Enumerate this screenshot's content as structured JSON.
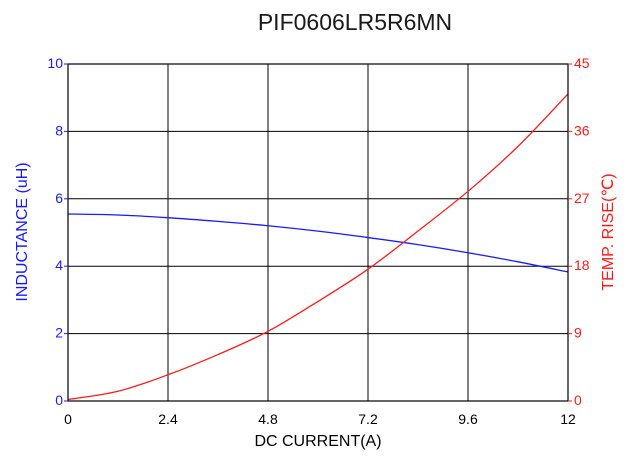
{
  "chart_data": {
    "type": "line",
    "title": "PIF0606LR5R6MN",
    "xlabel": "DC CURRENT(A)",
    "ylabel_left": "INDUCTANCE (uH)",
    "ylabel_right": "TEMP. RISE(℃)",
    "xlim": [
      0,
      12
    ],
    "ylim_left": [
      0,
      10
    ],
    "ylim_right": [
      0,
      45
    ],
    "x_ticks": [
      "0",
      "2.4",
      "4.8",
      "7.2",
      "9.6",
      "12"
    ],
    "y_left_ticks": [
      "0",
      "2",
      "4",
      "6",
      "8",
      "10"
    ],
    "y_right_ticks": [
      "0",
      "9",
      "18",
      "27",
      "36",
      "45"
    ],
    "grid": true,
    "colors": {
      "inductance": "#1a1aff",
      "temperature": "#ff1a1a",
      "grid": "#000000",
      "title": "#1a1a1a"
    },
    "series": [
      {
        "axis": "left",
        "x": [
          0,
          1.2,
          2.4,
          3.6,
          4.8,
          6.0,
          7.2,
          8.4,
          9.6,
          10.8,
          12
        ],
        "values": [
          5.55,
          5.52,
          5.44,
          5.33,
          5.2,
          5.04,
          4.85,
          4.64,
          4.4,
          4.13,
          3.83
        ]
      },
      {
        "axis": "right",
        "x": [
          0,
          1.2,
          2.4,
          3.6,
          4.8,
          6.0,
          7.2,
          8.4,
          9.6,
          10.8,
          12
        ],
        "values": [
          0.2,
          1.3,
          3.5,
          6.2,
          9.3,
          13.3,
          17.6,
          22.7,
          28.0,
          34.0,
          41.0
        ]
      }
    ]
  }
}
